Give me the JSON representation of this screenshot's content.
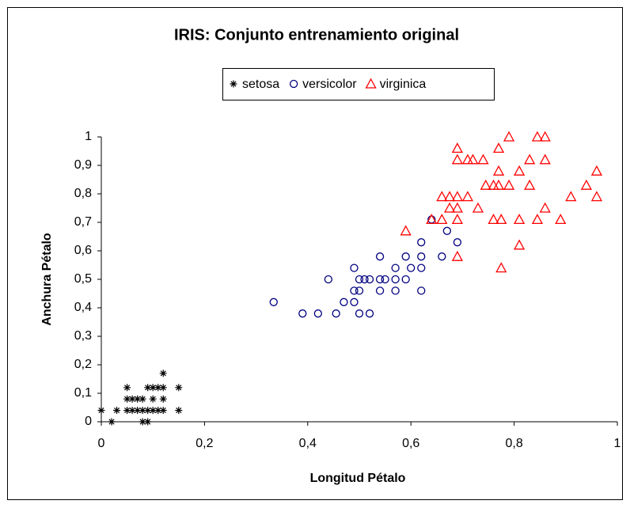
{
  "chart_data": {
    "type": "scatter",
    "title": "IRIS: Conjunto entrenamiento original",
    "xlabel": "Longitud Pétalo",
    "ylabel": "Anchura Pétalo",
    "xlim": [
      0,
      1
    ],
    "ylim": [
      0,
      1
    ],
    "xticks": [
      0,
      {
        "value": 0.2,
        "label": "0,2"
      },
      {
        "value": 0.4,
        "label": "0,4"
      },
      {
        "value": 0.6,
        "label": "0,6"
      },
      {
        "value": 0.8,
        "label": "0,8"
      },
      1
    ],
    "yticks": [
      0,
      {
        "value": 0.1,
        "label": "0,1"
      },
      {
        "value": 0.2,
        "label": "0,2"
      },
      {
        "value": 0.3,
        "label": "0,3"
      },
      {
        "value": 0.4,
        "label": "0,4"
      },
      {
        "value": 0.5,
        "label": "0,5"
      },
      {
        "value": 0.6,
        "label": "0,6"
      },
      {
        "value": 0.7,
        "label": "0,7"
      },
      {
        "value": 0.8,
        "label": "0,8"
      },
      {
        "value": 0.9,
        "label": "0,9"
      },
      1
    ],
    "legend": "top",
    "series": [
      {
        "name": "setosa",
        "color": "#000000",
        "marker": "asterisk",
        "x": [
          0,
          0.02,
          0.03,
          0.05,
          0.05,
          0.05,
          0.06,
          0.06,
          0.07,
          0.07,
          0.08,
          0.08,
          0.08,
          0.09,
          0.09,
          0.09,
          0.1,
          0.1,
          0.1,
          0.11,
          0.11,
          0.12,
          0.12,
          0.12,
          0.12,
          0.15,
          0.15
        ],
        "values": [
          0.04,
          0,
          0.04,
          0.04,
          0.08,
          0.12,
          0.04,
          0.08,
          0.04,
          0.08,
          0,
          0.04,
          0.08,
          0,
          0.04,
          0.12,
          0.04,
          0.08,
          0.12,
          0.04,
          0.12,
          0.04,
          0.08,
          0.12,
          0.17,
          0.04,
          0.12
        ]
      },
      {
        "name": "versicolor",
        "color": "#000080",
        "marker": "circle",
        "x": [
          0.334,
          0.39,
          0.42,
          0.44,
          0.455,
          0.47,
          0.49,
          0.49,
          0.49,
          0.5,
          0.5,
          0.5,
          0.51,
          0.52,
          0.52,
          0.54,
          0.54,
          0.54,
          0.55,
          0.57,
          0.57,
          0.57,
          0.59,
          0.59,
          0.6,
          0.62,
          0.62,
          0.62,
          0.62,
          0.64,
          0.66,
          0.67,
          0.69
        ],
        "values": [
          0.42,
          0.38,
          0.38,
          0.5,
          0.38,
          0.42,
          0.42,
          0.54,
          0.46,
          0.46,
          0.5,
          0.38,
          0.5,
          0.38,
          0.5,
          0.5,
          0.58,
          0.46,
          0.5,
          0.5,
          0.54,
          0.46,
          0.5,
          0.58,
          0.54,
          0.54,
          0.58,
          0.63,
          0.46,
          0.71,
          0.58,
          0.67,
          0.63
        ]
      },
      {
        "name": "virginica",
        "color": "#ff0000",
        "marker": "triangle",
        "x": [
          0.59,
          0.64,
          0.66,
          0.66,
          0.675,
          0.675,
          0.69,
          0.69,
          0.69,
          0.69,
          0.69,
          0.69,
          0.71,
          0.71,
          0.72,
          0.74,
          0.73,
          0.745,
          0.76,
          0.76,
          0.77,
          0.77,
          0.77,
          0.775,
          0.775,
          0.79,
          0.79,
          0.81,
          0.81,
          0.81,
          0.83,
          0.83,
          0.845,
          0.845,
          0.86,
          0.86,
          0.86,
          0.89,
          0.91,
          0.94,
          0.96,
          0.96
        ],
        "values": [
          0.67,
          0.71,
          0.71,
          0.79,
          0.75,
          0.79,
          0.79,
          0.75,
          0.71,
          0.58,
          0.96,
          0.92,
          0.79,
          0.92,
          0.92,
          0.92,
          0.75,
          0.83,
          0.83,
          0.71,
          0.83,
          0.88,
          0.96,
          0.71,
          0.54,
          0.83,
          1,
          0.88,
          0.71,
          0.62,
          0.83,
          0.92,
          0.71,
          1,
          1,
          0.92,
          0.75,
          0.71,
          0.79,
          0.83,
          0.88,
          0.79
        ]
      }
    ]
  }
}
